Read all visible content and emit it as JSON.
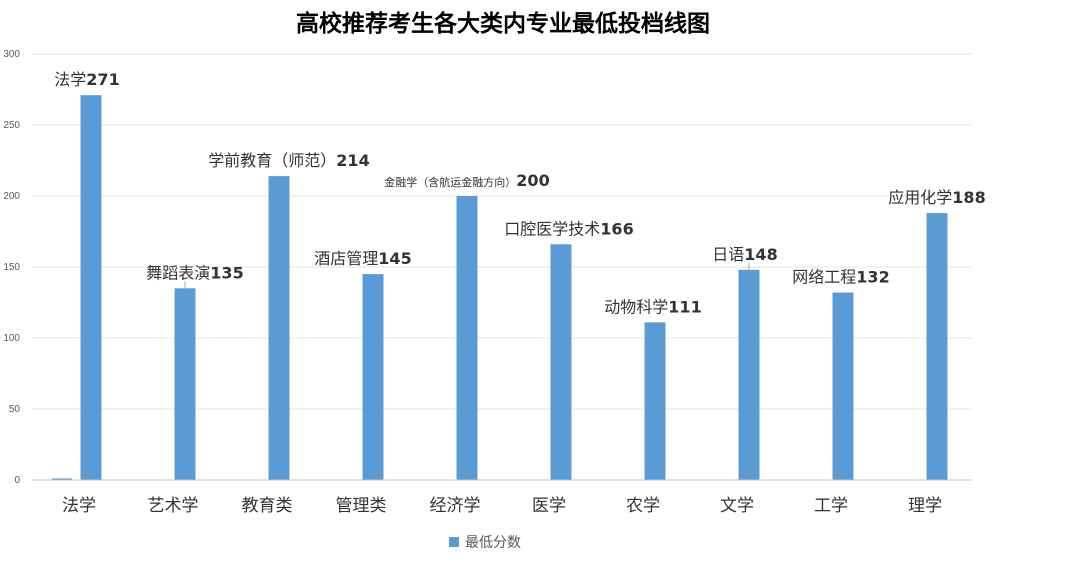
{
  "chart_data": {
    "type": "bar",
    "title": "高校推荐考生各大类内专业最低投档线图",
    "categories": [
      "法学",
      "艺术学",
      "教育类",
      "管理类",
      "经济学",
      "医学",
      "农学",
      "文学",
      "工学",
      "理学"
    ],
    "series": [
      {
        "name": "最低分数",
        "values": [
          271,
          135,
          214,
          145,
          200,
          166,
          111,
          148,
          132,
          188
        ]
      }
    ],
    "data_labels": [
      {
        "name": "法学",
        "value": "271"
      },
      {
        "name": "舞蹈表演",
        "value": "135"
      },
      {
        "name": "学前教育（师范）",
        "value": "214"
      },
      {
        "name": "酒店管理",
        "value": "145"
      },
      {
        "name": "金融学（含航运金融方向）",
        "value": "200"
      },
      {
        "name": "口腔医学技术",
        "value": "166"
      },
      {
        "name": "动物科学",
        "value": "111"
      },
      {
        "name": "日语",
        "value": "148"
      },
      {
        "name": "网络工程",
        "value": "132"
      },
      {
        "name": "应用化学",
        "value": "188"
      }
    ],
    "ylim": [
      0,
      300
    ],
    "yticks": [
      0,
      50,
      100,
      150,
      200,
      250,
      300
    ],
    "grid": true,
    "legend_position": "bottom",
    "colors": {
      "bar": "#5b9bd5",
      "grid": "#e3e3e3"
    }
  }
}
